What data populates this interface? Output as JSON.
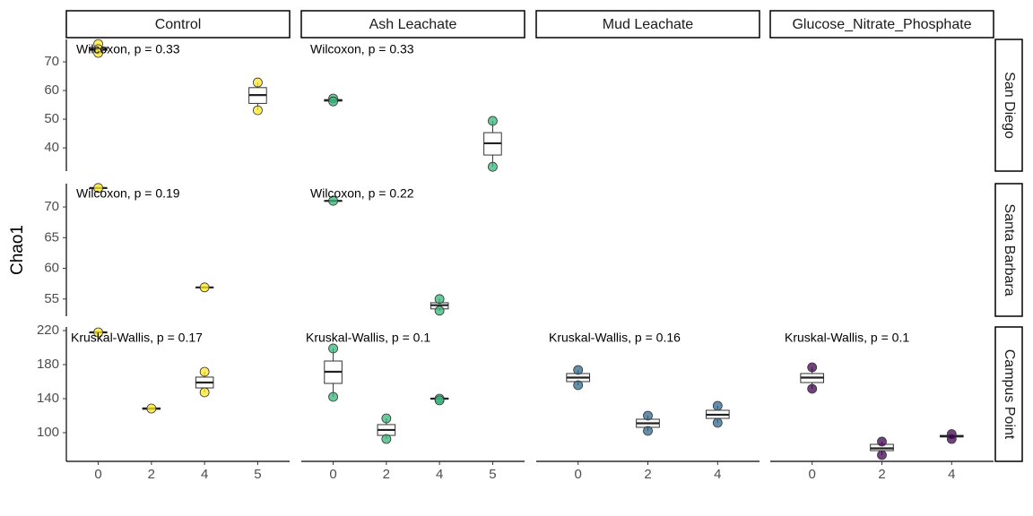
{
  "chart_data": {
    "type": "box",
    "ylabel": "Chao1",
    "columns": [
      {
        "label": "Control",
        "color": "#fde725",
        "categories": [
          "0",
          "2",
          "4",
          "5"
        ]
      },
      {
        "label": "Ash Leachate",
        "color": "#35b779",
        "categories": [
          "0",
          "2",
          "4",
          "5"
        ]
      },
      {
        "label": "Mud Leachate",
        "color": "#31688e",
        "categories": [
          "0",
          "2",
          "4"
        ]
      },
      {
        "label": "Glucose_Nitrate_Phosphate",
        "color": "#440154",
        "categories": [
          "0",
          "2",
          "4"
        ]
      }
    ],
    "rows": [
      {
        "label": "San Diego",
        "ylim": [
          31.9,
          77.8
        ],
        "yticks": [
          40,
          50,
          60,
          70
        ],
        "panels": [
          {
            "annotation": "Wilcoxon, p = 0.33",
            "boxes": [
              {
                "lower": 73.1,
                "q1": 74,
                "median": 74.4,
                "q3": 75,
                "upper": 76.2,
                "points": [
                  76.2,
                  74.4,
                  73.1
                ]
              },
              null,
              null,
              {
                "lower": 53.1,
                "q1": 55.5,
                "median": 58.4,
                "q3": 61,
                "upper": 62.8,
                "points": [
                  62.8,
                  53.1
                ]
              }
            ]
          },
          {
            "annotation": "Wilcoxon, p = 0.33",
            "boxes": [
              {
                "lower": 56.2,
                "q1": 56.3,
                "median": 56.6,
                "q3": 56.8,
                "upper": 57.2,
                "points": [
                  57.2,
                  56.2
                ]
              },
              null,
              null,
              {
                "lower": 33.4,
                "q1": 37.5,
                "median": 41.6,
                "q3": 45.3,
                "upper": 49.4,
                "points": [
                  49.4,
                  33.4
                ]
              }
            ]
          },
          null,
          null
        ]
      },
      {
        "label": "Santa Barbara",
        "ylim": [
          52.2,
          73.8
        ],
        "yticks": [
          55,
          60,
          65,
          70
        ],
        "panels": [
          {
            "annotation": "Wilcoxon, p = 0.19",
            "boxes": [
              {
                "lower": 73.1,
                "q1": 73.1,
                "median": 73.1,
                "q3": 73.1,
                "upper": 73.1,
                "points": [
                  73.1
                ]
              },
              null,
              {
                "lower": 56.9,
                "q1": 56.9,
                "median": 56.9,
                "q3": 56.9,
                "upper": 56.9,
                "points": [
                  56.9
                ]
              },
              null
            ]
          },
          {
            "annotation": "Wilcoxon, p = 0.22",
            "boxes": [
              {
                "lower": 71,
                "q1": 71,
                "median": 71,
                "q3": 71,
                "upper": 71,
                "points": [
                  71
                ]
              },
              null,
              {
                "lower": 53.1,
                "q1": 53.4,
                "median": 54,
                "q3": 54.4,
                "upper": 55,
                "points": [
                  55,
                  53.1
                ]
              },
              null
            ]
          },
          null,
          null
        ]
      },
      {
        "label": "Campus Point",
        "ylim": [
          66.3,
          224.2
        ],
        "yticks": [
          100,
          140,
          180,
          220
        ],
        "panels": [
          {
            "annotation": "Kruskal-Wallis, p = 0.17",
            "boxes": [
              {
                "lower": 217.9,
                "q1": 217.9,
                "median": 217.9,
                "q3": 217.9,
                "upper": 217.9,
                "points": [
                  217.9
                ]
              },
              {
                "lower": 127.5,
                "q1": 127.5,
                "median": 128.4,
                "q3": 129,
                "upper": 129,
                "points": [
                  128.4
                ]
              },
              {
                "lower": 147.4,
                "q1": 152.6,
                "median": 158.9,
                "q3": 165.3,
                "upper": 171.6,
                "points": [
                  171.6,
                  147.4
                ]
              },
              null
            ]
          },
          {
            "annotation": "Kruskal-Wallis, p = 0.1",
            "boxes": [
              {
                "lower": 142.1,
                "q1": 157.9,
                "median": 171.6,
                "q3": 184.2,
                "upper": 199,
                "points": [
                  199,
                  142.1
                ]
              },
              {
                "lower": 92.6,
                "q1": 96.8,
                "median": 103.2,
                "q3": 109.5,
                "upper": 116.8,
                "points": [
                  116.8,
                  92.6
                ]
              },
              {
                "lower": 138,
                "q1": 139.5,
                "median": 140,
                "q3": 140.5,
                "upper": 140.5,
                "points": [
                  140,
                  138
                ]
              },
              null
            ]
          },
          {
            "annotation": "Kruskal-Wallis, p = 0.16",
            "boxes": [
              {
                "lower": 155.8,
                "q1": 160,
                "median": 164.7,
                "q3": 169.5,
                "upper": 173.7,
                "points": [
                  173.7,
                  155.8
                ]
              },
              {
                "lower": 102.1,
                "q1": 106.3,
                "median": 111,
                "q3": 115.8,
                "upper": 120,
                "points": [
                  120,
                  102.1
                ]
              },
              {
                "lower": 111.6,
                "q1": 116.8,
                "median": 121,
                "q3": 126.3,
                "upper": 131.6,
                "points": [
                  131.6,
                  111.6
                ]
              }
            ]
          },
          {
            "annotation": "Kruskal-Wallis, p = 0.1",
            "boxes": [
              {
                "lower": 151.6,
                "q1": 158.9,
                "median": 164.7,
                "q3": 169.5,
                "upper": 176.8,
                "points": [
                  176.8,
                  151.6
                ]
              },
              {
                "lower": 73.7,
                "q1": 78.9,
                "median": 81.6,
                "q3": 86.3,
                "upper": 89.5,
                "points": [
                  89.5,
                  73.7
                ]
              },
              {
                "lower": 92.6,
                "q1": 95,
                "median": 95.8,
                "q3": 96.8,
                "upper": 98.4,
                "points": [
                  98.4,
                  92.6
                ]
              }
            ]
          }
        ]
      }
    ]
  }
}
